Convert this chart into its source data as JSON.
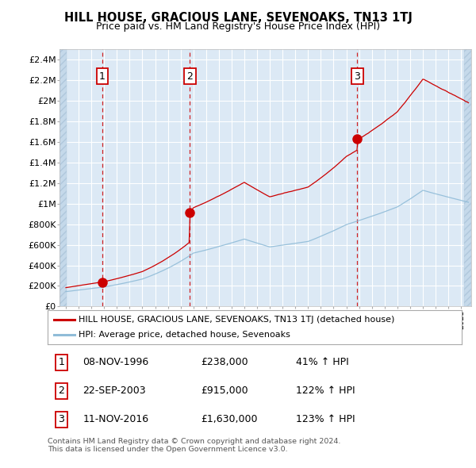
{
  "title": "HILL HOUSE, GRACIOUS LANE, SEVENOAKS, TN13 1TJ",
  "subtitle": "Price paid vs. HM Land Registry's House Price Index (HPI)",
  "ylim": [
    0,
    2500000
  ],
  "yticks": [
    0,
    200000,
    400000,
    600000,
    800000,
    1000000,
    1200000,
    1400000,
    1600000,
    1800000,
    2000000,
    2200000,
    2400000
  ],
  "ytick_labels": [
    "£0",
    "£200K",
    "£400K",
    "£600K",
    "£800K",
    "£1M",
    "£1.2M",
    "£1.4M",
    "£1.6M",
    "£1.8M",
    "£2M",
    "£2.2M",
    "£2.4M"
  ],
  "xlim_start": 1993.5,
  "xlim_end": 2025.8,
  "background_color": "#ffffff",
  "plot_bg_color": "#dce9f5",
  "hatch_bg_color": "#c5d9ea",
  "grid_color": "#ffffff",
  "sale_color": "#cc0000",
  "hpi_color": "#90bcd8",
  "dashed_line_color": "#cc0000",
  "sales": [
    {
      "num": 1,
      "date_x": 1996.86,
      "price": 238000,
      "label": "1"
    },
    {
      "num": 2,
      "date_x": 2003.72,
      "price": 915000,
      "label": "2"
    },
    {
      "num": 3,
      "date_x": 2016.86,
      "price": 1630000,
      "label": "3"
    }
  ],
  "table_rows": [
    {
      "num": "1",
      "date": "08-NOV-1996",
      "price": "£238,000",
      "change": "41% ↑ HPI"
    },
    {
      "num": "2",
      "date": "22-SEP-2003",
      "price": "£915,000",
      "change": "122% ↑ HPI"
    },
    {
      "num": "3",
      "date": "11-NOV-2016",
      "price": "£1,630,000",
      "change": "123% ↑ HPI"
    }
  ],
  "legend_line1": "HILL HOUSE, GRACIOUS LANE, SEVENOAKS, TN13 1TJ (detached house)",
  "legend_line2": "HPI: Average price, detached house, Sevenoaks",
  "footnote": "Contains HM Land Registry data © Crown copyright and database right 2024.\nThis data is licensed under the Open Government Licence v3.0."
}
